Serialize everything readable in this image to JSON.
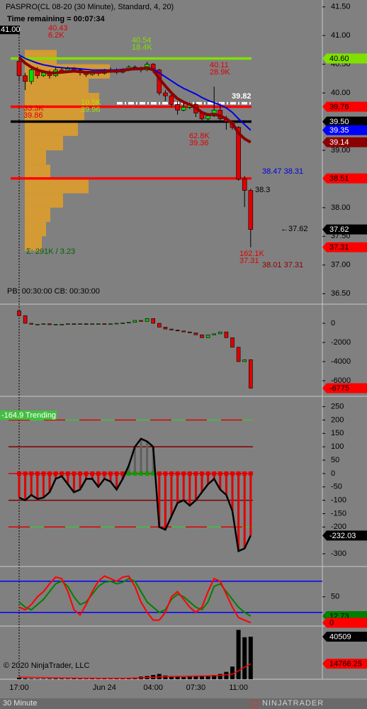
{
  "chart_data": [
    {
      "type": "candlestick",
      "title": "PASPRO(CL 08-20 (30 Minute), Standard, 4, 20)",
      "subtitle": "Time remaining = 00:07:34",
      "info": "PB: 00:30:00  CB: 00:30:00",
      "categories": [
        "17:00",
        null,
        null,
        null,
        null,
        null,
        null,
        null,
        null,
        null,
        null,
        null,
        null,
        null,
        "Jun 24",
        null,
        null,
        null,
        null,
        null,
        null,
        null,
        "04:00",
        null,
        null,
        null,
        null,
        null,
        null,
        "07:30",
        null,
        null,
        null,
        null,
        null,
        null,
        "11:00",
        null,
        null
      ],
      "open": [
        40.55,
        40.3,
        40.2,
        40.4,
        40.3,
        40.35,
        40.3,
        40.4,
        40.38,
        40.42,
        40.4,
        40.35,
        40.32,
        40.36,
        40.34,
        40.38,
        40.4,
        40.36,
        40.4,
        40.45,
        40.44,
        40.4,
        40.5,
        40.4,
        40.0,
        39.95,
        39.8,
        39.7,
        39.75,
        39.8,
        39.65,
        39.55,
        39.6,
        39.7,
        39.55,
        39.5,
        39.4,
        38.5,
        38.3
      ],
      "high": [
        40.62,
        40.35,
        40.45,
        40.45,
        40.4,
        40.4,
        40.45,
        40.45,
        40.46,
        40.45,
        40.43,
        40.38,
        40.4,
        40.4,
        40.42,
        40.44,
        40.43,
        40.43,
        40.48,
        40.48,
        40.46,
        40.54,
        40.52,
        40.42,
        40.05,
        39.98,
        39.85,
        39.82,
        39.85,
        39.82,
        39.68,
        39.65,
        40.11,
        39.82,
        39.6,
        39.52,
        39.42,
        38.55,
        38.33
      ],
      "low": [
        40.2,
        40.05,
        40.15,
        40.25,
        40.28,
        40.25,
        40.28,
        40.34,
        40.35,
        40.36,
        40.3,
        40.28,
        40.3,
        40.3,
        40.32,
        40.35,
        40.33,
        40.34,
        40.38,
        40.4,
        40.36,
        40.38,
        40.35,
        39.96,
        39.86,
        39.76,
        39.62,
        39.68,
        39.72,
        39.58,
        39.5,
        39.52,
        39.58,
        39.5,
        39.36,
        39.36,
        38.47,
        38.01,
        37.31
      ],
      "close": [
        40.3,
        40.2,
        40.4,
        40.3,
        40.35,
        40.3,
        40.4,
        40.38,
        40.42,
        40.4,
        40.35,
        40.32,
        40.36,
        40.34,
        40.38,
        40.4,
        40.36,
        40.4,
        40.45,
        40.44,
        40.4,
        40.5,
        40.4,
        40.0,
        39.95,
        39.8,
        39.7,
        39.75,
        39.8,
        39.65,
        39.55,
        39.6,
        39.7,
        39.55,
        39.5,
        39.4,
        38.5,
        38.3,
        37.62
      ],
      "up_color": "#00e000",
      "down_color": "#e00000",
      "series": [
        {
          "color": "#0000e0",
          "width": 2,
          "values": [
            40.66,
            40.6,
            40.56,
            40.52,
            40.49,
            40.47,
            40.45,
            40.44,
            40.43,
            40.43,
            40.42,
            40.41,
            40.4,
            40.4,
            40.4,
            40.4,
            40.4,
            40.41,
            40.42,
            40.43,
            40.43,
            40.44,
            40.42,
            40.35,
            40.28,
            40.21,
            40.14,
            40.08,
            40.03,
            39.98,
            39.92,
            39.87,
            39.83,
            39.79,
            39.74,
            39.66,
            39.55,
            39.45,
            39.35
          ]
        },
        {
          "color": "#8b0000",
          "width": 4,
          "values": [
            40.62,
            40.52,
            40.45,
            40.4,
            40.37,
            40.35,
            40.35,
            40.36,
            40.37,
            40.38,
            40.37,
            40.36,
            40.36,
            40.36,
            40.37,
            40.38,
            40.38,
            40.39,
            40.41,
            40.42,
            40.42,
            40.44,
            40.4,
            40.25,
            40.12,
            40.0,
            39.9,
            39.84,
            39.8,
            39.74,
            39.66,
            39.62,
            39.63,
            39.6,
            39.55,
            39.47,
            39.3,
            39.2,
            39.14
          ]
        }
      ],
      "ylim": [
        36.33,
        41.62
      ],
      "yticks": [
        {
          "value": 41.5,
          "label": "41.50"
        },
        {
          "value": 41,
          "label": "41.00"
        },
        {
          "value": 40.5,
          "label": "40.50"
        },
        {
          "value": 40,
          "label": "40.00"
        },
        {
          "value": 39,
          "label": "39.00"
        },
        {
          "value": 38,
          "label": "38.00"
        },
        {
          "value": 37.5,
          "label": "37.50"
        },
        {
          "value": 37,
          "label": "37.00"
        },
        {
          "value": 36.5,
          "label": "36.50"
        }
      ],
      "levels": [
        {
          "value": 40.6,
          "color": "#80e000",
          "style": "solid"
        },
        {
          "value": 39.82,
          "color": "#ffffff",
          "style": "dashed"
        },
        {
          "value": 39.76,
          "color": "#ff0000",
          "style": "solid"
        },
        {
          "value": 39.5,
          "color": "#000000",
          "style": "solid"
        },
        {
          "value": 38.51,
          "color": "#ff0000",
          "style": "solid"
        }
      ],
      "marker": {
        "value": 41,
        "label": "41.00"
      },
      "badges": [
        {
          "value": 40.6,
          "label": "40.60",
          "color": "#80e000",
          "text_color": "#000000"
        },
        {
          "value": 39.76,
          "label": "39.76",
          "color": "#ff0000",
          "text_color": "#000000"
        },
        {
          "value": 39.5,
          "label": "39.50",
          "color": "#000000",
          "text_color": "#ffffff"
        },
        {
          "value": 39.35,
          "label": "39.35",
          "color": "#0000ff",
          "text_color": "#ffffff"
        },
        {
          "value": 39.14,
          "label": "39.14",
          "color": "#8b0000",
          "text_color": "#ffffff"
        },
        {
          "value": 38.51,
          "label": "38.51",
          "color": "#ff0000",
          "text_color": "#000000"
        },
        {
          "value": 37.62,
          "label": "37.62",
          "color": "#000000",
          "text_color": "#ffffff"
        },
        {
          "value": 37.31,
          "label": "37.31",
          "color": "#ff0000",
          "text_color": "#000000"
        }
      ],
      "annotations": [
        {
          "lines": [
            "40.43",
            "6.2K"
          ],
          "color": "#e00000"
        },
        {
          "lines": [
            "40.54",
            "18.4K"
          ],
          "color": "#80e000"
        },
        {
          "lines": [
            "40.11",
            "28.9K"
          ],
          "color": "#e00000"
        },
        {
          "lines": [
            "10.5K",
            "39.96"
          ],
          "color": "#b0e000"
        },
        {
          "lines": [
            "33.3K",
            "39.86"
          ],
          "color": "#e00000"
        },
        {
          "lines": [
            "62.8K",
            "39.36"
          ],
          "color": "#e00000"
        },
        {
          "lines": [
            "162.1K",
            "37.31"
          ],
          "color": "#e00000"
        },
        {
          "lines": [
            "39.82"
          ],
          "color": "#ffffff"
        },
        {
          "lines": [
            "38.47 38.31"
          ],
          "color": "#0000e0"
        },
        {
          "lines": [
            "38.3"
          ],
          "color": "#000000"
        },
        {
          "lines": [
            "←37.62"
          ],
          "color": "#000000"
        },
        {
          "lines": [
            "38.01 37.31"
          ],
          "color": "#8b0000"
        },
        {
          "lines": [
            "Σ: 291K / 3.23"
          ],
          "color": "#006400"
        }
      ],
      "profile": {
        "color": "#e8a020",
        "bins": [
          37.25,
          37.5,
          37.75,
          38,
          38.25,
          38.5,
          38.75,
          39,
          39.25,
          39.5,
          39.75,
          40,
          40.25,
          40.5,
          40.75
        ],
        "counts": [
          8,
          10,
          12,
          18,
          30,
          12,
          10,
          18,
          25,
          28,
          35,
          30,
          40,
          15
        ]
      }
    },
    {
      "type": "delta",
      "open": [
        1300,
        800,
        0,
        -100,
        -100,
        -50,
        -150,
        -100,
        -100,
        -50,
        -100,
        -50,
        -100,
        -50,
        -50,
        -100,
        -50,
        0,
        50,
        100,
        300,
        200,
        500,
        0,
        -400,
        -600,
        -700,
        -800,
        -900,
        -1000,
        -1200,
        -1500,
        -1200,
        -1100,
        -900,
        -1500,
        -2500,
        -4000,
        -3800
      ],
      "close": [
        800,
        0,
        -100,
        -100,
        -50,
        -150,
        -100,
        -100,
        -50,
        -100,
        -50,
        -100,
        -50,
        -50,
        -100,
        -50,
        0,
        50,
        100,
        300,
        200,
        500,
        0,
        -400,
        -600,
        -700,
        -800,
        -900,
        -1000,
        -1200,
        -1500,
        -1200,
        -1100,
        -900,
        -1500,
        -2500,
        -4000,
        -3800,
        -6775
      ],
      "up_color": "#00c000",
      "down_color": "#e00000",
      "ylim": [
        -7555,
        1926
      ],
      "yticks": [
        0,
        -2000,
        -4000,
        -6000
      ],
      "badges": [
        {
          "value": -6775,
          "color": "#ff0000",
          "text_color": "#000000"
        }
      ]
    },
    {
      "type": "cci",
      "label": "-164.9 Trending",
      "values": [
        -90,
        -100,
        -80,
        -95,
        -90,
        -70,
        -20,
        -10,
        -40,
        -70,
        -60,
        -20,
        -20,
        -50,
        -20,
        -30,
        -60,
        -20,
        30,
        100,
        130,
        120,
        100,
        -200,
        -210,
        -160,
        -110,
        -100,
        -120,
        -100,
        -70,
        -40,
        -20,
        -60,
        -80,
        -140,
        -290,
        -280,
        -232.03
      ],
      "color": "#000000",
      "bar_up_color": "#606060",
      "bar_down_color": "#e00000",
      "ylim": [
        -345,
        286
      ],
      "yticks": [
        250,
        200,
        150,
        100,
        50,
        0,
        -50,
        -100,
        -150,
        -200,
        -300
      ],
      "levels": [
        {
          "value": 200,
          "color": "#40c040",
          "style": "segmented"
        },
        {
          "value": 100,
          "color": "#800000",
          "style": "solid"
        },
        {
          "value": 0,
          "color": "#e00000",
          "style": "solid"
        },
        {
          "value": -100,
          "color": "#800000",
          "style": "solid"
        },
        {
          "value": -200,
          "color": "#40c040",
          "style": "segmented"
        }
      ],
      "badges": [
        {
          "value": -232.03,
          "color": "#000000",
          "text_color": "#ffffff"
        }
      ]
    },
    {
      "type": "stochastic",
      "series": [
        {
          "color": "#008000",
          "values": [
            40,
            30,
            25,
            35,
            45,
            60,
            75,
            80,
            70,
            50,
            35,
            40,
            55,
            70,
            78,
            80,
            75,
            78,
            85,
            80,
            60,
            40,
            30,
            20,
            25,
            45,
            55,
            50,
            40,
            30,
            25,
            40,
            70,
            75,
            60,
            45,
            30,
            20,
            12.73
          ]
        },
        {
          "color": "#ff0000",
          "values": [
            30,
            25,
            35,
            50,
            60,
            75,
            88,
            85,
            60,
            25,
            15,
            35,
            60,
            80,
            90,
            85,
            80,
            88,
            90,
            70,
            40,
            20,
            5,
            5,
            20,
            50,
            60,
            45,
            30,
            20,
            30,
            60,
            85,
            80,
            55,
            30,
            10,
            5,
            0
          ]
        }
      ],
      "ylim": [
        -5,
        107
      ],
      "yticks": [
        50
      ],
      "levels": [
        {
          "value": 80,
          "color": "#0000ff"
        },
        {
          "value": 20,
          "color": "#0000ff"
        }
      ],
      "badges": [
        {
          "value": 12.73,
          "color": "#008000",
          "text_color": "#000000"
        },
        {
          "value": 0,
          "color": "#ff0000",
          "text_color": "#000000"
        }
      ]
    },
    {
      "type": "volume",
      "copyright": "© 2020 NinjaTrader, LLC",
      "values": [
        1500,
        800,
        500,
        400,
        400,
        500,
        600,
        500,
        400,
        600,
        500,
        400,
        500,
        400,
        600,
        500,
        700,
        900,
        1200,
        1500,
        2500,
        3000,
        4000,
        5000,
        3500,
        3000,
        2500,
        2000,
        2500,
        3000,
        3000,
        3500,
        4000,
        5000,
        7000,
        12000,
        47000,
        40000,
        40509
      ],
      "average": [
        2000,
        1900,
        1800,
        1700,
        1600,
        1500,
        1400,
        1300,
        1200,
        1100,
        1000,
        1000,
        1000,
        900,
        900,
        900,
        900,
        900,
        1000,
        1100,
        1300,
        1500,
        1800,
        2200,
        2400,
        2600,
        2700,
        2800,
        2900,
        3000,
        3100,
        3200,
        3400,
        3700,
        4100,
        4800,
        8000,
        11500,
        14766.25
      ],
      "color": "#000000",
      "average_color": "#ff0000",
      "ylim": [
        0,
        50000
      ],
      "badges": [
        {
          "value": 40509,
          "color": "#000000",
          "text_color": "#ffffff"
        },
        {
          "value": 14766.25,
          "color": "#ff0000",
          "text_color": "#000000"
        }
      ]
    }
  ],
  "footer": {
    "interval": "30 Minute",
    "logo": "NINJATRADER"
  }
}
